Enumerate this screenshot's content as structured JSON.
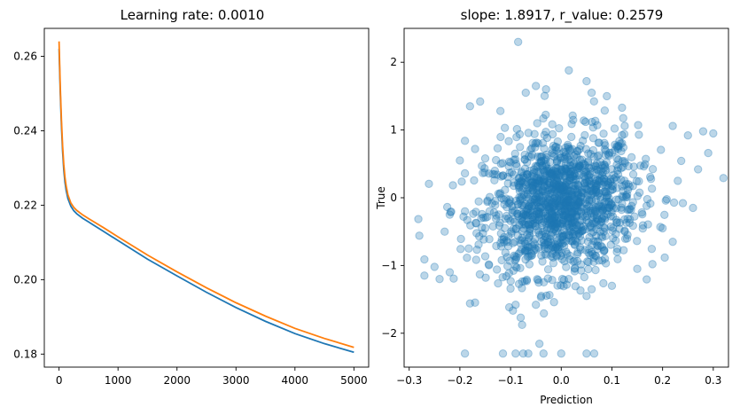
{
  "chart_data": [
    {
      "type": "line",
      "title": "Learning rate: 0.0010",
      "xlabel": "",
      "ylabel": "",
      "xlim": [
        -250,
        5250
      ],
      "ylim": [
        0.1765,
        0.2675
      ],
      "xticks": [
        0,
        1000,
        2000,
        3000,
        4000,
        5000
      ],
      "xtick_labels": [
        "0",
        "1000",
        "2000",
        "3000",
        "4000",
        "5000"
      ],
      "yticks": [
        0.18,
        0.2,
        0.22,
        0.24,
        0.26
      ],
      "ytick_labels": [
        "0.18",
        "0.20",
        "0.22",
        "0.24",
        "0.26"
      ],
      "grid": false,
      "series": [
        {
          "color": "#1f77b4",
          "x": [
            0,
            20,
            40,
            60,
            80,
            100,
            120,
            150,
            200,
            250,
            300,
            400,
            500,
            750,
            1000,
            1500,
            2000,
            2500,
            3000,
            3500,
            4000,
            4500,
            5000
          ],
          "y": [
            0.262,
            0.2505,
            0.2415,
            0.2345,
            0.2295,
            0.2262,
            0.224,
            0.2218,
            0.2197,
            0.2185,
            0.2177,
            0.2165,
            0.2155,
            0.213,
            0.2105,
            0.2055,
            0.201,
            0.1966,
            0.1925,
            0.1888,
            0.1855,
            0.1828,
            0.1805
          ]
        },
        {
          "color": "#ff7f0e",
          "x": [
            0,
            20,
            40,
            60,
            80,
            100,
            120,
            150,
            200,
            250,
            300,
            400,
            500,
            750,
            1000,
            1500,
            2000,
            2500,
            3000,
            3500,
            4000,
            4500,
            5000
          ],
          "y": [
            0.264,
            0.252,
            0.243,
            0.236,
            0.231,
            0.2275,
            0.2252,
            0.2228,
            0.2206,
            0.2194,
            0.2186,
            0.2174,
            0.2164,
            0.214,
            0.2115,
            0.2066,
            0.2021,
            0.1978,
            0.1938,
            0.1902,
            0.1869,
            0.1842,
            0.1818
          ]
        }
      ]
    },
    {
      "type": "scatter",
      "title": "slope: 1.8917, r_value: 0.2579",
      "xlabel": "Prediction",
      "ylabel": "True",
      "xlim": [
        -0.31,
        0.33
      ],
      "ylim": [
        -2.5,
        2.5
      ],
      "xticks": [
        -0.3,
        -0.2,
        -0.1,
        0.0,
        0.1,
        0.2,
        0.3
      ],
      "xtick_labels": [
        "−0.3",
        "−0.2",
        "−0.1",
        "0.0",
        "0.1",
        "0.2",
        "0.3"
      ],
      "yticks": [
        -2,
        -1,
        0,
        1,
        2
      ],
      "ytick_labels": [
        "−2",
        "−1",
        "0",
        "1",
        "2"
      ],
      "grid": false,
      "color": "#1f77b4",
      "alpha": 0.3,
      "cloud": {
        "n": 1400,
        "x_mean": 0.0,
        "x_sd": 0.075,
        "y_mean": -0.1,
        "y_sd": 0.5,
        "slope": 1.8917,
        "intercept": -0.1
      },
      "points": [
        {
          "x": -0.085,
          "y": 2.3
        },
        {
          "x": 0.015,
          "y": 1.88
        },
        {
          "x": 0.05,
          "y": 1.72
        },
        {
          "x": -0.05,
          "y": 1.65
        },
        {
          "x": -0.03,
          "y": 1.6
        },
        {
          "x": -0.07,
          "y": 1.55
        },
        {
          "x": 0.06,
          "y": 1.55
        },
        {
          "x": 0.09,
          "y": 1.5
        },
        {
          "x": -0.16,
          "y": 1.42
        },
        {
          "x": -0.18,
          "y": 1.35
        },
        {
          "x": -0.12,
          "y": 1.28
        },
        {
          "x": 0.12,
          "y": 1.33
        },
        {
          "x": 0.22,
          "y": 1.06
        },
        {
          "x": 0.25,
          "y": 0.92
        },
        {
          "x": 0.28,
          "y": 0.98
        },
        {
          "x": 0.3,
          "y": 0.95
        },
        {
          "x": 0.29,
          "y": 0.66
        },
        {
          "x": 0.27,
          "y": 0.42
        },
        {
          "x": 0.32,
          "y": 0.29
        },
        {
          "x": 0.23,
          "y": 0.25
        },
        {
          "x": 0.26,
          "y": -0.15
        },
        {
          "x": 0.24,
          "y": -0.08
        },
        {
          "x": 0.22,
          "y": -0.65
        },
        {
          "x": 0.2,
          "y": -0.45
        },
        {
          "x": -0.28,
          "y": -0.56
        },
        {
          "x": -0.27,
          "y": -0.91
        },
        {
          "x": -0.27,
          "y": -1.15
        },
        {
          "x": -0.25,
          "y": -1.02
        },
        {
          "x": -0.24,
          "y": -1.2
        },
        {
          "x": -0.22,
          "y": -1.1
        },
        {
          "x": -0.23,
          "y": -0.5
        },
        {
          "x": -0.22,
          "y": -0.25
        },
        {
          "x": -0.19,
          "y": -0.2
        },
        {
          "x": -0.2,
          "y": 0.55
        },
        {
          "x": -0.19,
          "y": 0.36
        },
        {
          "x": -0.19,
          "y": 0.84
        },
        {
          "x": -0.17,
          "y": 0.72
        },
        {
          "x": -0.15,
          "y": 0.58
        },
        {
          "x": -0.18,
          "y": -1.56
        },
        {
          "x": -0.1,
          "y": -1.34
        },
        {
          "x": -0.09,
          "y": -1.58
        },
        {
          "x": -0.08,
          "y": -1.77
        },
        {
          "x": -0.05,
          "y": -1.58
        },
        {
          "x": -0.04,
          "y": -1.47
        },
        {
          "x": 0.05,
          "y": -1.45
        },
        {
          "x": 0.06,
          "y": -1.35
        },
        {
          "x": 0.1,
          "y": -1.3
        },
        {
          "x": -0.19,
          "y": -2.3
        },
        {
          "x": -0.115,
          "y": -2.3
        },
        {
          "x": -0.09,
          "y": -2.3
        },
        {
          "x": -0.075,
          "y": -2.3
        },
        {
          "x": -0.065,
          "y": -2.3
        },
        {
          "x": -0.035,
          "y": -2.3
        },
        {
          "x": 0.0,
          "y": -2.3
        },
        {
          "x": 0.05,
          "y": -2.3
        },
        {
          "x": 0.065,
          "y": -2.3
        },
        {
          "x": 0.18,
          "y": -0.98
        },
        {
          "x": 0.15,
          "y": -1.05
        }
      ]
    }
  ]
}
